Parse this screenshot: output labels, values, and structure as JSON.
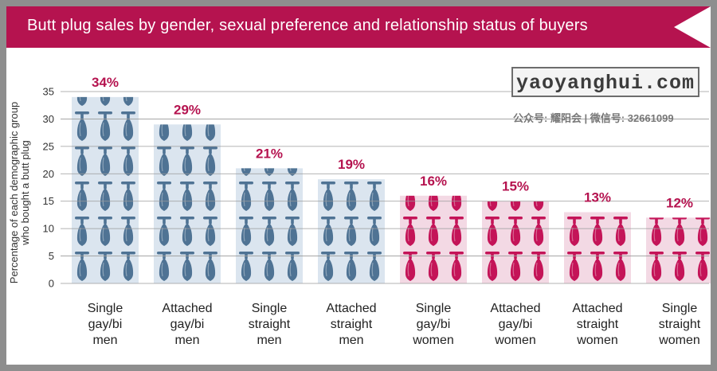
{
  "header": {
    "title": "Butt plug sales by gender, sexual preference and relationship status of buyers"
  },
  "watermark": {
    "site": "yaoyanghui.com",
    "subtitle": "公众号: 耀阳会 | 微信号: 32661099"
  },
  "colors": {
    "brand": "#b5134f",
    "men_bar_bg": "#dbe5ef",
    "men_icon": "#4f7394",
    "women_bar_bg": "#f3d9e4",
    "women_icon": "#c41458",
    "grid": "#9a9a9a"
  },
  "chart_data": {
    "type": "bar",
    "title": "Butt plug sales by gender, sexual preference and relationship status of buyers",
    "ylabel_lines": [
      "Percentage of each demographic group",
      "who bought a butt plug"
    ],
    "xlabel": "",
    "ylim": [
      0,
      35
    ],
    "yticks": [
      0,
      5,
      10,
      15,
      20,
      25,
      30,
      35
    ],
    "grid": true,
    "categories": [
      {
        "lines": [
          "Single",
          "gay/bi",
          "men"
        ],
        "group": "men"
      },
      {
        "lines": [
          "Attached",
          "gay/bi",
          "men"
        ],
        "group": "men"
      },
      {
        "lines": [
          "Single",
          "straight",
          "men"
        ],
        "group": "men"
      },
      {
        "lines": [
          "Attached",
          "straight",
          "men"
        ],
        "group": "men"
      },
      {
        "lines": [
          "Single",
          "gay/bi",
          "women"
        ],
        "group": "women"
      },
      {
        "lines": [
          "Attached",
          "gay/bi",
          "women"
        ],
        "group": "women"
      },
      {
        "lines": [
          "Attached",
          "straight",
          "women"
        ],
        "group": "women"
      },
      {
        "lines": [
          "Single",
          "straight",
          "women"
        ],
        "group": "women"
      }
    ],
    "values": [
      34,
      29,
      21,
      19,
      16,
      15,
      13,
      12
    ],
    "value_labels": [
      "34%",
      "29%",
      "21%",
      "19%",
      "16%",
      "15%",
      "13%",
      "12%"
    ]
  }
}
